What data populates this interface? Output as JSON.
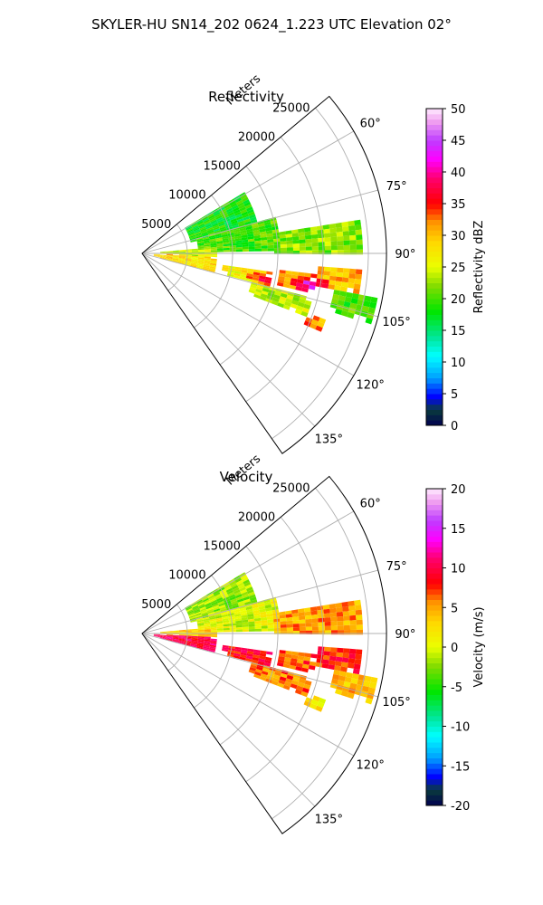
{
  "figure": {
    "suptitle": "SKYLER-HU  SN14_202  0624_1.223 UTC Elevation 02°"
  },
  "chart_data": [
    {
      "type": "heatmap",
      "subtype": "polar-sector-radar-ppi",
      "title": "Reflectivity",
      "range_label": "Meters",
      "range_ticks": [
        "5000",
        "10000",
        "15000",
        "20000",
        "25000"
      ],
      "range_tick_values": [
        5000,
        10000,
        15000,
        20000,
        25000
      ],
      "range_max": 27000,
      "azimuth_range": [
        50,
        145
      ],
      "azimuth_ticks": [
        "60°",
        "75°",
        "90°",
        "105°",
        "120°",
        "135°"
      ],
      "azimuth_tick_values": [
        60,
        75,
        90,
        105,
        120,
        135
      ],
      "grid": true,
      "colorbar": {
        "label": "Reflectivity dBZ",
        "min": 0,
        "max": 50,
        "ticks": [
          "0",
          "5",
          "10",
          "15",
          "20",
          "25",
          "30",
          "35",
          "40",
          "45",
          "50"
        ],
        "tick_values": [
          0,
          5,
          10,
          15,
          20,
          25,
          30,
          35,
          40,
          45,
          50
        ]
      },
      "echo_regions": [
        {
          "az": [
            58,
            78
          ],
          "range": [
            5000,
            13000
          ],
          "value": 18
        },
        {
          "az": [
            74,
            88
          ],
          "range": [
            6000,
            15000
          ],
          "value": 20
        },
        {
          "az": [
            80,
            90
          ],
          "range": [
            14000,
            24000
          ],
          "value": 22
        },
        {
          "az": [
            84,
            92
          ],
          "range": [
            2000,
            8000
          ],
          "value": 24
        },
        {
          "az": [
            92,
            104
          ],
          "range": [
            1000,
            8000
          ],
          "value": 28
        },
        {
          "az": [
            97,
            104
          ],
          "range": [
            9000,
            14000
          ],
          "value": 27
        },
        {
          "az": [
            96,
            103
          ],
          "range": [
            15000,
            19000
          ],
          "value": 32
        },
        {
          "az": [
            94,
            100
          ],
          "range": [
            19000,
            24000
          ],
          "value": 30
        },
        {
          "az": [
            104,
            110
          ],
          "range": [
            12000,
            19000
          ],
          "value": 24
        },
        {
          "az": [
            100,
            106
          ],
          "range": [
            21000,
            26000
          ],
          "value": 20
        },
        {
          "az": [
            109,
            113
          ],
          "range": [
            19500,
            21500
          ],
          "value": 32
        }
      ],
      "cores": [
        {
          "az": 100,
          "range": 18500,
          "value": 44
        },
        {
          "az": 101,
          "range": 13500,
          "value": 40
        },
        {
          "az": 106,
          "range": 8000,
          "value": 37
        },
        {
          "az": 94,
          "range": 25500,
          "value": 42
        },
        {
          "az": 92,
          "range": 2500,
          "value": 34
        }
      ]
    },
    {
      "type": "heatmap",
      "subtype": "polar-sector-radar-ppi",
      "title": "Velocity",
      "range_label": "Meters",
      "range_ticks": [
        "5000",
        "10000",
        "15000",
        "20000",
        "25000"
      ],
      "range_tick_values": [
        5000,
        10000,
        15000,
        20000,
        25000
      ],
      "range_max": 27000,
      "azimuth_range": [
        50,
        145
      ],
      "azimuth_ticks": [
        "60°",
        "75°",
        "90°",
        "105°",
        "120°",
        "135°"
      ],
      "azimuth_tick_values": [
        60,
        75,
        90,
        105,
        120,
        135
      ],
      "grid": true,
      "colorbar": {
        "label": "Velocity (m/s)",
        "min": -20,
        "max": 20,
        "ticks": [
          "-20",
          "-15",
          "-10",
          "-5",
          "0",
          "5",
          "10",
          "15",
          "20"
        ],
        "tick_values": [
          -20,
          -15,
          -10,
          -5,
          0,
          5,
          10,
          15,
          20
        ]
      },
      "echo_regions": [
        {
          "az": [
            58,
            78
          ],
          "range": [
            5000,
            13000
          ],
          "value": -2
        },
        {
          "az": [
            74,
            88
          ],
          "range": [
            6000,
            15000
          ],
          "value": 0
        },
        {
          "az": [
            80,
            90
          ],
          "range": [
            14000,
            24000
          ],
          "value": 5
        },
        {
          "az": [
            84,
            92
          ],
          "range": [
            2000,
            8000
          ],
          "value": 3
        },
        {
          "az": [
            92,
            104
          ],
          "range": [
            1000,
            8000
          ],
          "value": 10
        },
        {
          "az": [
            97,
            104
          ],
          "range": [
            9000,
            14000
          ],
          "value": 9
        },
        {
          "az": [
            96,
            103
          ],
          "range": [
            15000,
            19000
          ],
          "value": 7
        },
        {
          "az": [
            94,
            100
          ],
          "range": [
            19000,
            24000
          ],
          "value": 8
        },
        {
          "az": [
            104,
            110
          ],
          "range": [
            12000,
            19000
          ],
          "value": 6
        },
        {
          "az": [
            100,
            106
          ],
          "range": [
            21000,
            26000
          ],
          "value": 4
        },
        {
          "az": [
            109,
            113
          ],
          "range": [
            19500,
            21500
          ],
          "value": 2
        }
      ],
      "cores": []
    }
  ]
}
